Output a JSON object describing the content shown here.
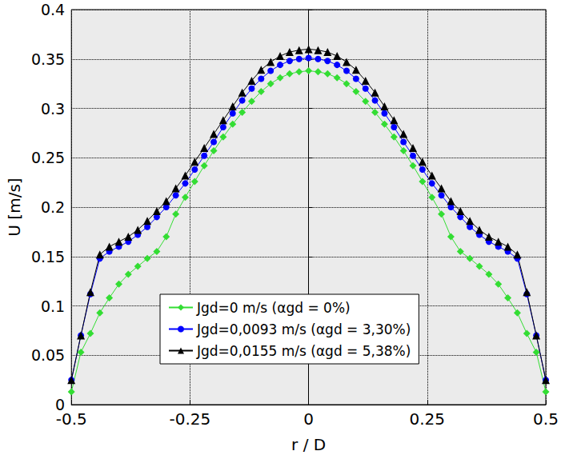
{
  "chart_data": {
    "type": "line",
    "x_label": "r / D",
    "y_label": "U [m/s]",
    "x": [
      -0.5,
      -0.48,
      -0.46,
      -0.44,
      -0.42,
      -0.4,
      -0.38,
      -0.36,
      -0.34,
      -0.32,
      -0.3,
      -0.28,
      -0.26,
      -0.24,
      -0.22,
      -0.2,
      -0.18,
      -0.16,
      -0.14,
      -0.12,
      -0.1,
      -0.08,
      -0.06,
      -0.04,
      -0.02,
      0,
      0.02,
      0.04,
      0.06,
      0.08,
      0.1,
      0.12,
      0.14,
      0.16,
      0.18,
      0.2,
      0.22,
      0.24,
      0.26,
      0.28,
      0.3,
      0.32,
      0.34,
      0.36,
      0.38,
      0.4,
      0.42,
      0.44,
      0.46,
      0.48,
      0.5
    ],
    "series": [
      {
        "name": "Jgd=0 m/s (αgd = 0%)",
        "color": "#33dd33",
        "marker": "diamond",
        "line_style": "solid",
        "values": [
          0.013,
          0.053,
          0.072,
          0.093,
          0.108,
          0.122,
          0.132,
          0.14,
          0.148,
          0.155,
          0.17,
          0.193,
          0.21,
          0.226,
          0.242,
          0.257,
          0.271,
          0.284,
          0.296,
          0.307,
          0.317,
          0.325,
          0.331,
          0.335,
          0.337,
          0.338,
          0.337,
          0.335,
          0.331,
          0.325,
          0.317,
          0.307,
          0.296,
          0.284,
          0.271,
          0.257,
          0.242,
          0.226,
          0.21,
          0.193,
          0.17,
          0.155,
          0.148,
          0.14,
          0.132,
          0.122,
          0.108,
          0.093,
          0.072,
          0.053,
          0.013
        ]
      },
      {
        "name": "Jgd=0,0093 m/s (αgd = 3,30%)",
        "color": "#0000ff",
        "marker": "circle",
        "line_style": "solid",
        "values": [
          0.025,
          0.07,
          0.112,
          0.148,
          0.155,
          0.16,
          0.165,
          0.172,
          0.18,
          0.19,
          0.2,
          0.212,
          0.224,
          0.238,
          0.252,
          0.266,
          0.281,
          0.295,
          0.308,
          0.32,
          0.33,
          0.338,
          0.344,
          0.348,
          0.35,
          0.351,
          0.35,
          0.348,
          0.344,
          0.338,
          0.33,
          0.32,
          0.308,
          0.295,
          0.281,
          0.266,
          0.252,
          0.238,
          0.224,
          0.212,
          0.2,
          0.19,
          0.18,
          0.172,
          0.165,
          0.16,
          0.155,
          0.148,
          0.112,
          0.07,
          0.025
        ]
      },
      {
        "name": "Jgd=0,0155 m/s (αgd = 5,38%)",
        "color": "#000000",
        "marker": "triangle",
        "line_style": "solid",
        "values": [
          0.025,
          0.07,
          0.114,
          0.152,
          0.16,
          0.165,
          0.17,
          0.177,
          0.186,
          0.196,
          0.206,
          0.219,
          0.232,
          0.246,
          0.26,
          0.274,
          0.288,
          0.302,
          0.316,
          0.328,
          0.339,
          0.347,
          0.353,
          0.357,
          0.359,
          0.36,
          0.359,
          0.357,
          0.353,
          0.347,
          0.339,
          0.328,
          0.316,
          0.302,
          0.288,
          0.274,
          0.26,
          0.246,
          0.232,
          0.219,
          0.206,
          0.196,
          0.186,
          0.177,
          0.17,
          0.165,
          0.16,
          0.152,
          0.114,
          0.07,
          0.025
        ]
      }
    ],
    "xlim": [
      -0.5,
      0.5
    ],
    "xticks": [
      -0.5,
      -0.25,
      0,
      0.25,
      0.5
    ],
    "ylim": [
      0,
      0.4
    ],
    "yticks": [
      0,
      0.05,
      0.1,
      0.15,
      0.2,
      0.25,
      0.3,
      0.35,
      0.4
    ],
    "grid": true,
    "legend": "lower center"
  }
}
